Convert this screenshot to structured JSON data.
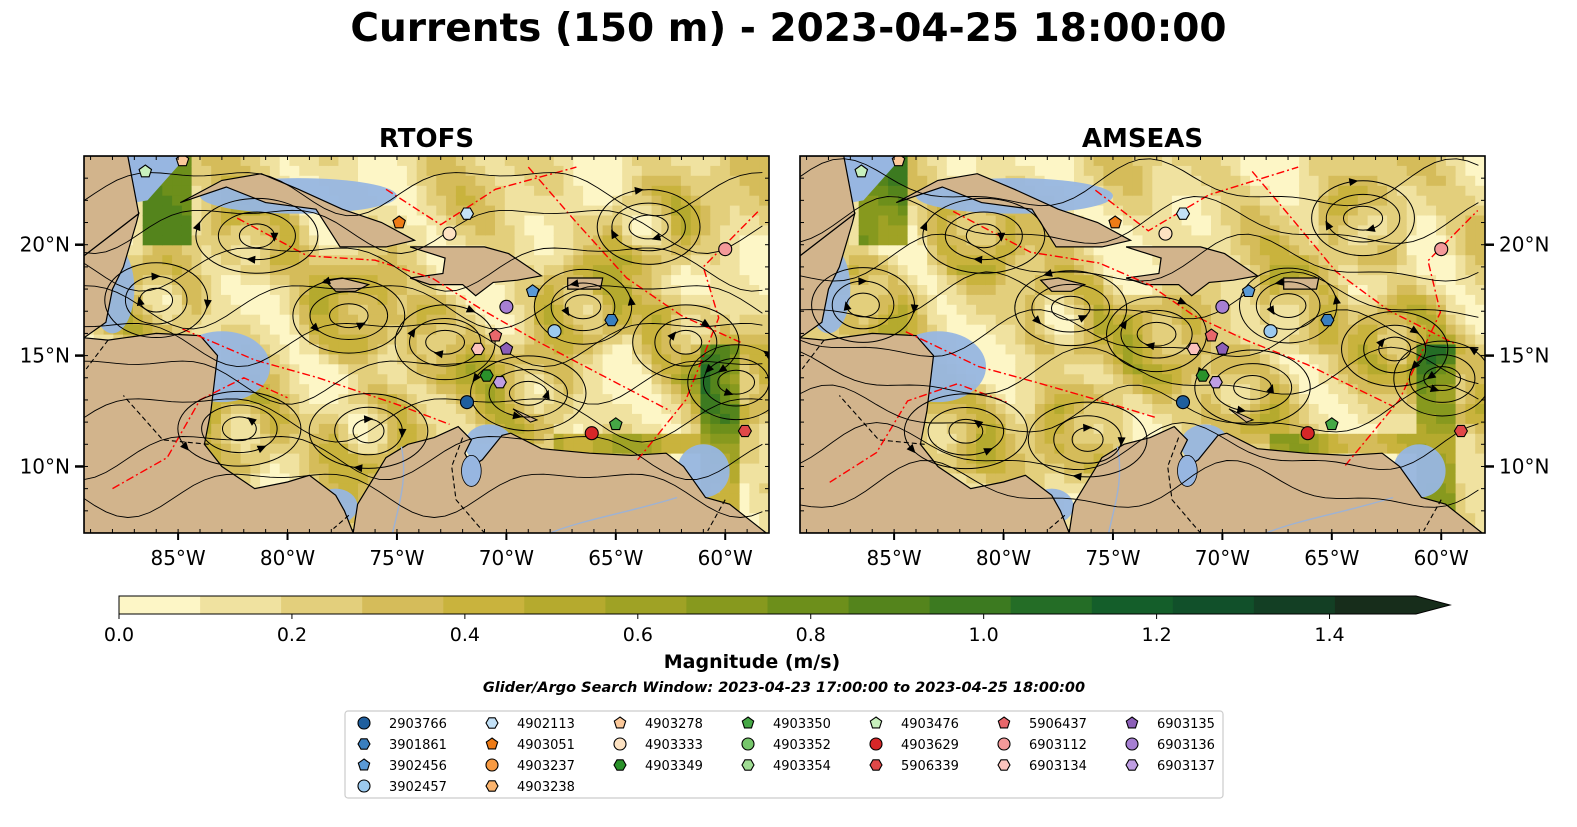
{
  "figure": {
    "title": "Currents (150 m) - 2023-04-25 18:00:00",
    "search_window": "Glider/Argo Search Window: 2023-04-23 17:00:00 to 2023-04-25 18:00:00",
    "colors": {
      "land": "#d2b48c",
      "ocean_fill": "#97b6e1",
      "front_line": "#ff0000",
      "streamline": "#000000",
      "river": "#9db2d4"
    }
  },
  "chart_data": [
    {
      "type": "heatmap",
      "title": "RTOFS",
      "variable": "current magnitude with streamlines",
      "xlim": [
        -89.3,
        -58.0
      ],
      "ylim": [
        7.0,
        24.0
      ],
      "x_ticks": [
        "85°W",
        "80°W",
        "75°W",
        "70°W",
        "65°W",
        "60°W"
      ],
      "y_ticks": [
        "10°N",
        "15°N",
        "20°N"
      ],
      "y_tick_side": "left",
      "grid": false
    },
    {
      "type": "heatmap",
      "title": "AMSEAS",
      "variable": "current magnitude with streamlines",
      "xlim": [
        -89.3,
        -58.0
      ],
      "ylim": [
        7.0,
        24.0
      ],
      "x_ticks": [
        "85°W",
        "80°W",
        "75°W",
        "70°W",
        "65°W",
        "60°W"
      ],
      "y_ticks": [
        "10°N",
        "15°N",
        "20°N"
      ],
      "y_tick_side": "right",
      "grid": false
    }
  ],
  "colorbar": {
    "label": "Magnitude (m/s)",
    "range": [
      0.0,
      1.5
    ],
    "step": 0.1,
    "extend": "max",
    "tick_labels": [
      "0.0",
      "0.2",
      "0.4",
      "0.6",
      "0.8",
      "1.0",
      "1.2",
      "1.4"
    ],
    "colors": [
      "#fdf6c6",
      "#f0e2a0",
      "#e3cf7c",
      "#d5bc5a",
      "#c9b33d",
      "#b5aa2e",
      "#9fa225",
      "#87991e",
      "#6d8f1b",
      "#54841c",
      "#3c7a20",
      "#246d26",
      "#145e2a",
      "#11502a",
      "#133f24",
      "#172d1b"
    ]
  },
  "legend": {
    "columns": [
      [
        {
          "label": "2903766",
          "marker": "circle",
          "color": "#1f5f9e"
        },
        {
          "label": "3901861",
          "marker": "hexagon",
          "color": "#3a7fbf"
        },
        {
          "label": "3902456",
          "marker": "pentagon",
          "color": "#5a9ad6"
        },
        {
          "label": "3902457",
          "marker": "circle",
          "color": "#9ccaef"
        }
      ],
      [
        {
          "label": "4902113",
          "marker": "hexagon",
          "color": "#c3e1f7"
        },
        {
          "label": "4903051",
          "marker": "pentagon",
          "color": "#ee7b16"
        },
        {
          "label": "4903237",
          "marker": "circle",
          "color": "#f79a42"
        },
        {
          "label": "4903238",
          "marker": "hexagon",
          "color": "#fbb46e"
        }
      ],
      [
        {
          "label": "4903278",
          "marker": "pentagon",
          "color": "#fcc99a"
        },
        {
          "label": "4903333",
          "marker": "circle",
          "color": "#fde2c2"
        },
        {
          "label": "4903349",
          "marker": "hexagon",
          "color": "#2a922a"
        }
      ],
      [
        {
          "label": "4903350",
          "marker": "pentagon",
          "color": "#45a845"
        },
        {
          "label": "4903352",
          "marker": "circle",
          "color": "#76c66b"
        },
        {
          "label": "4903354",
          "marker": "hexagon",
          "color": "#9fdc93"
        }
      ],
      [
        {
          "label": "4903476",
          "marker": "pentagon",
          "color": "#c8f0bd"
        },
        {
          "label": "4903629",
          "marker": "circle",
          "color": "#d62728"
        },
        {
          "label": "5906339",
          "marker": "hexagon",
          "color": "#e04848"
        }
      ],
      [
        {
          "label": "5906437",
          "marker": "pentagon",
          "color": "#e8676b"
        },
        {
          "label": "6903112",
          "marker": "circle",
          "color": "#f49a9a"
        },
        {
          "label": "6903134",
          "marker": "hexagon",
          "color": "#fbc3bd"
        }
      ],
      [
        {
          "label": "6903135",
          "marker": "pentagon",
          "color": "#8c5fb8"
        },
        {
          "label": "6903136",
          "marker": "circle",
          "color": "#a67fd2"
        },
        {
          "label": "6903137",
          "marker": "hexagon",
          "color": "#bf9ee3"
        }
      ]
    ]
  },
  "floats": [
    {
      "id": "2903766",
      "lon": -71.8,
      "lat": 12.9
    },
    {
      "id": "3901861",
      "lon": -65.2,
      "lat": 16.6
    },
    {
      "id": "3902456",
      "lon": -68.8,
      "lat": 17.9
    },
    {
      "id": "3902457",
      "lon": -67.8,
      "lat": 16.1
    },
    {
      "id": "4902113",
      "lon": -71.8,
      "lat": 21.4
    },
    {
      "id": "4903051",
      "lon": -74.9,
      "lat": 21.0
    },
    {
      "id": "4903278",
      "lon": -84.8,
      "lat": 23.8
    },
    {
      "id": "4903333",
      "lon": -72.6,
      "lat": 20.5
    },
    {
      "id": "4903349",
      "lon": -70.9,
      "lat": 14.1
    },
    {
      "id": "4903350",
      "lon": -65.0,
      "lat": 11.9
    },
    {
      "id": "4903476",
      "lon": -86.5,
      "lat": 23.3
    },
    {
      "id": "4903629",
      "lon": -66.1,
      "lat": 11.5
    },
    {
      "id": "5906339",
      "lon": -59.1,
      "lat": 11.6
    },
    {
      "id": "5906437",
      "lon": -70.5,
      "lat": 15.9
    },
    {
      "id": "6903112",
      "lon": -60.0,
      "lat": 19.8
    },
    {
      "id": "6903134",
      "lon": -71.3,
      "lat": 15.3
    },
    {
      "id": "6903135",
      "lon": -70.0,
      "lat": 15.3
    },
    {
      "id": "6903136",
      "lon": -70.0,
      "lat": 17.2
    },
    {
      "id": "6903137",
      "lon": -70.3,
      "lat": 13.8
    }
  ]
}
